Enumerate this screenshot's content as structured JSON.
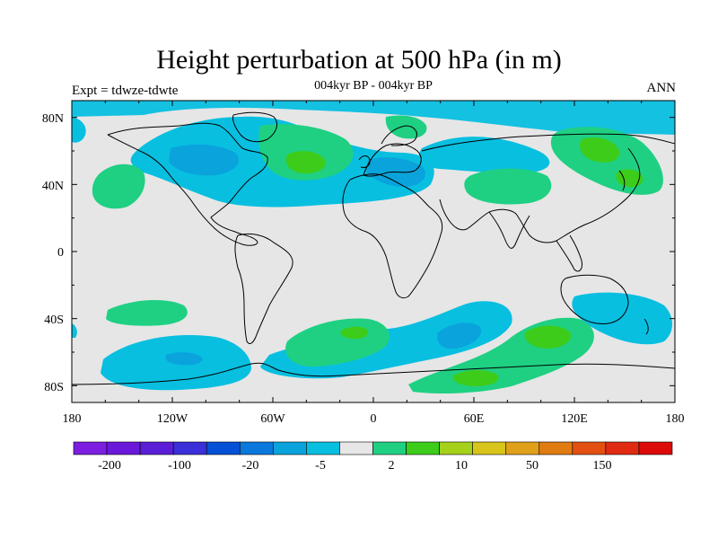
{
  "title": "Height perturbation at 500 hPa (in m)",
  "subtitle": "004kyr BP - 004kyr BP",
  "left_label": "Expt = tdwze-tdwte",
  "right_label": "ANN",
  "colors": {
    "land_bg": "#e6e6e6",
    "pos_2_10": "#1fd083",
    "pos_10_20": "#3dcc1a",
    "neg_5_2": "#08bfe0",
    "neg_20_5": "#0aa3dc"
  },
  "chart_data": {
    "type": "heatmap",
    "map": "contour map, cylindrical equidistant projection, with coastlines",
    "x_axis": {
      "range": [
        -180,
        180
      ],
      "ticks": [
        "180",
        "120W",
        "60W",
        "0",
        "60E",
        "120E",
        "180"
      ]
    },
    "y_axis": {
      "range": [
        -90,
        90
      ],
      "ticks": [
        "80N",
        "40N",
        "0",
        "40S",
        "80S"
      ]
    },
    "colorbar": {
      "boundaries": [
        "-200",
        "-100",
        "-20",
        "-5",
        "2",
        "10",
        "50",
        "150"
      ],
      "colors": [
        "#7b1ee0",
        "#6a18da",
        "#5a1ed6",
        "#3a2fd8",
        "#0450d6",
        "#0a78dc",
        "#0aa3dc",
        "#08bfe0",
        "#e6e6e6",
        "#1fd083",
        "#3dcc1a",
        "#a5d11a",
        "#d8c41a",
        "#e0a01a",
        "#e07b12",
        "#e35012",
        "#e02b12",
        "#dd0a0a"
      ]
    }
  }
}
